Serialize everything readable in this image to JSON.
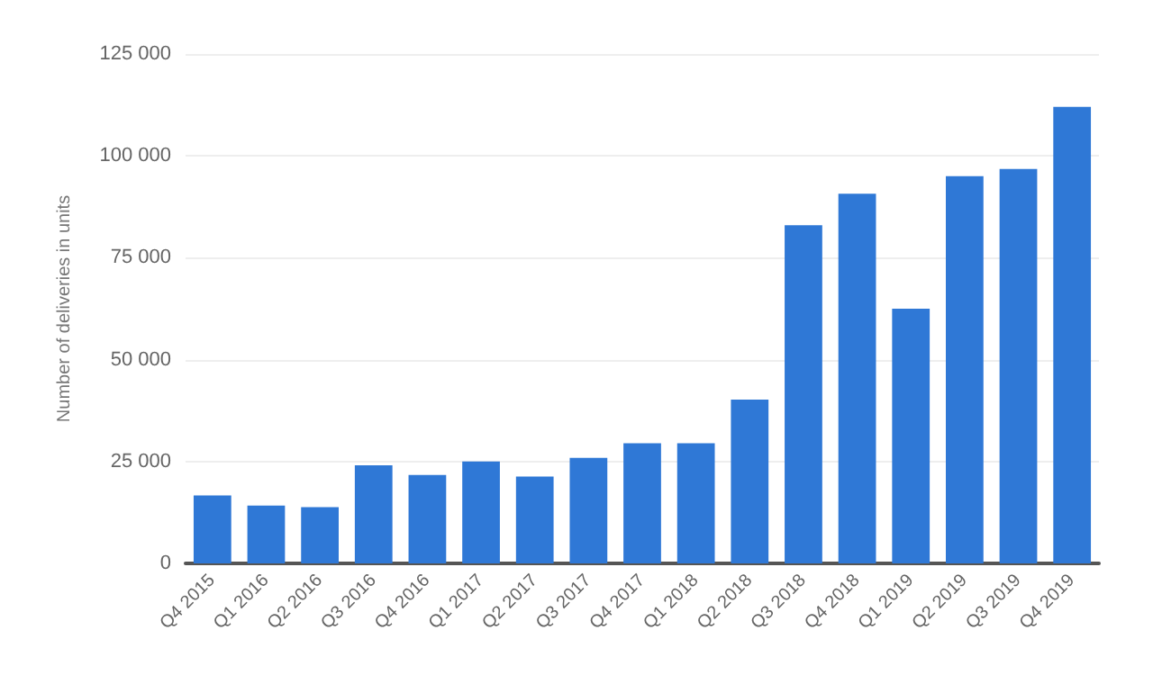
{
  "chart_data": {
    "type": "bar",
    "ylabel": "Number of deliveries in units",
    "categories": [
      "Q4 2015",
      "Q1 2016",
      "Q2 2016",
      "Q3 2016",
      "Q4 2016",
      "Q1 2017",
      "Q2 2017",
      "Q3 2017",
      "Q4 2017",
      "Q1 2018",
      "Q2 2018",
      "Q3 2018",
      "Q4 2018",
      "Q1 2019",
      "Q2 2019",
      "Q3 2019",
      "Q4 2019"
    ],
    "values": [
      16700,
      14200,
      13800,
      24100,
      21700,
      25000,
      21300,
      25900,
      29500,
      29500,
      40200,
      83000,
      90700,
      62500,
      95000,
      96800,
      112000
    ],
    "color": "#2f78d6",
    "ylim": [
      0,
      125000
    ],
    "yticks": [
      {
        "value": 0,
        "label": "0"
      },
      {
        "value": 25000,
        "label": "25 000"
      },
      {
        "value": 50000,
        "label": "50 000"
      },
      {
        "value": 75000,
        "label": "75 000"
      },
      {
        "value": 100000,
        "label": "100 000"
      },
      {
        "value": 125000,
        "label": "125 000"
      }
    ],
    "grid": "y"
  }
}
